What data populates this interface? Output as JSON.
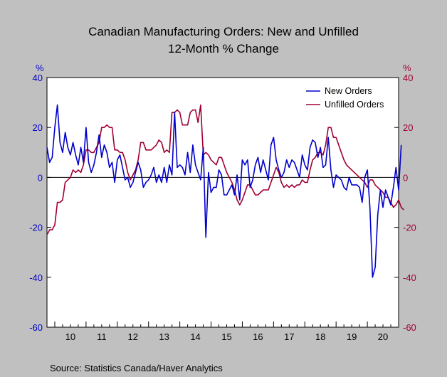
{
  "chart_data": {
    "type": "line",
    "title": "Canadian Manufacturing Orders: New and Unfilled",
    "subtitle": "12-Month % Change",
    "source": "Source:  Statistics Canada/Haver Analytics",
    "left_unit": "%",
    "right_unit": "%",
    "ylim": [
      -60,
      40
    ],
    "y_ticks": [
      "40",
      "20",
      "0",
      "-20",
      "-40",
      "-60"
    ],
    "y_tick_values": [
      40,
      20,
      0,
      -20,
      -40,
      -60
    ],
    "x_start_year": 2009.75,
    "x_end_year": 2021.0,
    "x_tick_labels": [
      "10",
      "11",
      "12",
      "13",
      "14",
      "15",
      "16",
      "17",
      "18",
      "19",
      "20"
    ],
    "x_tick_years": [
      2010,
      2011,
      2012,
      2013,
      2014,
      2015,
      2016,
      2017,
      2018,
      2019,
      2020
    ],
    "legend_position": "top-right",
    "colors": {
      "new_orders": "#0000cc",
      "unfilled_orders": "#a00030",
      "plot_bg": "#ffffff",
      "page_bg": "#c0c0c0"
    },
    "series": [
      {
        "name": "New Orders",
        "color": "#0000cc",
        "start_year": 2009.75,
        "step": 0.0833333,
        "values": [
          12,
          6,
          8,
          20,
          29,
          14,
          10,
          18,
          12,
          9,
          14,
          9,
          5,
          12,
          6,
          20,
          6,
          2,
          5,
          10,
          17,
          8,
          13,
          10,
          4,
          6,
          -2,
          7,
          9,
          4,
          -1,
          0,
          -4,
          -2,
          2,
          6,
          3,
          -4,
          -2,
          -1,
          1,
          4,
          -2,
          1,
          -2,
          4,
          -2,
          5,
          1,
          26,
          4,
          5,
          4,
          1,
          10,
          2,
          13,
          5,
          2,
          -1,
          12,
          -24,
          2,
          -6,
          -4,
          -4,
          3,
          1,
          -7,
          -7,
          -5,
          -3,
          -7,
          1,
          -9,
          7,
          5,
          7,
          -4,
          -1,
          5,
          8,
          2,
          7,
          3,
          -1,
          13,
          16,
          7,
          3,
          0,
          2,
          7,
          4,
          7,
          6,
          3,
          0,
          9,
          5,
          3,
          12,
          15,
          14,
          8,
          12,
          4,
          5,
          16,
          3,
          -4,
          1,
          0,
          -1,
          -4,
          -5,
          0,
          -3,
          -3,
          -3,
          -4,
          -10,
          0,
          3,
          -12,
          -40,
          -36,
          -15,
          -5,
          -12,
          -5,
          -8,
          -11,
          -4,
          4,
          -5,
          13
        ]
      },
      {
        "name": "Unfilled Orders",
        "color": "#a00030",
        "start_year": 2009.75,
        "step": 0.0833333,
        "values": [
          -23,
          -21,
          -21,
          -19,
          -10,
          -10,
          -9,
          -2,
          -1,
          0,
          3,
          2,
          3,
          2,
          5,
          11,
          11,
          10,
          10,
          12,
          14,
          20,
          20,
          21,
          20,
          20,
          11,
          11,
          10,
          10,
          7,
          2,
          -1,
          1,
          3,
          7,
          14,
          14,
          11,
          11,
          11,
          12,
          13,
          15,
          14,
          10,
          11,
          10,
          26,
          26,
          27,
          26,
          21,
          21,
          21,
          26,
          27,
          27,
          22,
          29,
          9,
          10,
          9,
          7,
          6,
          5,
          8,
          8,
          5,
          2,
          0,
          -2,
          -5,
          -9,
          -11,
          -9,
          -6,
          -3,
          -3,
          -5,
          -7,
          -7,
          -6,
          -5,
          -5,
          -5,
          -2,
          1,
          4,
          2,
          -2,
          -4,
          -3,
          -4,
          -3,
          -4,
          -3,
          -3,
          -1,
          -2,
          -2,
          3,
          7,
          8,
          10,
          10,
          9,
          13,
          20,
          20,
          16,
          16,
          13,
          10,
          7,
          5,
          4,
          3,
          2,
          1,
          0,
          -1,
          -2,
          -4,
          -1,
          -1,
          -3,
          -4,
          -5,
          -6,
          -8,
          -8,
          -10,
          -12,
          -11,
          -9,
          -12,
          -13
        ]
      }
    ]
  }
}
